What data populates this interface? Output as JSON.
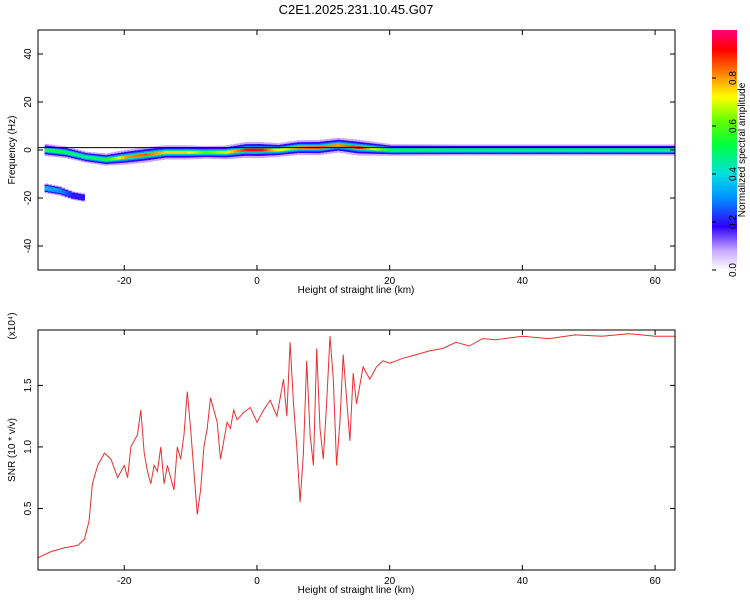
{
  "title": "C2E1.2025.231.10.45.G07",
  "chart_data": [
    {
      "type": "heatmap",
      "xlabel": "Height of straight line (km)",
      "ylabel": "Frequency (Hz)",
      "xlim": [
        -33,
        63
      ],
      "ylim": [
        -50,
        50
      ],
      "xticks": [
        -20,
        0,
        20,
        40,
        60
      ],
      "yticks": [
        -40,
        -20,
        0,
        20,
        40
      ],
      "colorbar": {
        "label": "Normalized spectral amplitude",
        "range": [
          0.0,
          1.0
        ],
        "ticks": [
          0.0,
          0.2,
          0.4,
          0.6,
          0.8
        ],
        "colormap": "rainbow"
      },
      "main_track": {
        "x": [
          -32,
          -29,
          -26,
          -23,
          -20,
          -17,
          -14,
          -11,
          -8,
          -5,
          -2,
          0,
          3,
          6,
          9,
          12,
          15,
          20,
          30,
          40,
          50,
          63
        ],
        "freq": [
          0,
          -1,
          -3,
          -4,
          -3,
          -2,
          -1,
          -1,
          -1,
          -1,
          0,
          0,
          0,
          1,
          1,
          2,
          1,
          0,
          0,
          0,
          0,
          0
        ],
        "amplitude": [
          0.55,
          0.5,
          0.45,
          0.55,
          0.8,
          0.85,
          0.75,
          0.75,
          0.6,
          0.7,
          0.9,
          0.95,
          0.7,
          0.8,
          0.85,
          0.8,
          0.9,
          0.5,
          0.45,
          0.45,
          0.45,
          0.45
        ]
      },
      "secondary_track": {
        "x": [
          -32,
          -30,
          -28,
          -26
        ],
        "freq": [
          -16,
          -17,
          -19,
          -20
        ],
        "amplitude": [
          0.35,
          0.3,
          0.2,
          0.2
        ]
      }
    },
    {
      "type": "line",
      "xlabel": "Height of straight line (km)",
      "ylabel": "SNR (10 * v/v)",
      "scale_label": "(x10⁴)",
      "xlim": [
        -33,
        63
      ],
      "ylim": [
        0,
        1.95
      ],
      "xticks": [
        -20,
        0,
        20,
        40,
        60
      ],
      "yticks": [
        0.5,
        1.0,
        1.5
      ],
      "color": "#e83030",
      "series": [
        {
          "x": [
            -33,
            -31,
            -29,
            -27,
            -26,
            -25.3,
            -24.8,
            -24,
            -23,
            -22,
            -21,
            -20,
            -19.5,
            -19,
            -18.5,
            -18,
            -17.5,
            -17,
            -16.5,
            -16,
            -15.5,
            -15,
            -14.5,
            -14,
            -13.5,
            -13,
            -12.5,
            -12,
            -11.5,
            -11,
            -10.5,
            -10,
            -9.5,
            -9,
            -8.5,
            -8,
            -7.5,
            -7,
            -6.5,
            -6,
            -5.5,
            -5,
            -4.5,
            -4,
            -3.5,
            -3,
            -2,
            -1,
            0,
            1,
            2,
            3,
            4,
            4.5,
            5,
            5.5,
            6,
            6.5,
            7,
            7.5,
            8,
            8.5,
            9,
            9.5,
            10,
            10.5,
            11,
            11.5,
            12,
            12.5,
            13,
            13.5,
            14,
            14.5,
            15,
            15.5,
            16,
            17,
            18,
            19,
            20,
            22,
            24,
            26,
            28,
            30,
            32,
            34,
            36,
            40,
            44,
            48,
            52,
            56,
            60,
            63
          ],
          "y": [
            0.1,
            0.15,
            0.18,
            0.2,
            0.25,
            0.4,
            0.7,
            0.85,
            0.95,
            0.9,
            0.75,
            0.85,
            0.75,
            1.0,
            1.05,
            1.1,
            1.3,
            0.95,
            0.8,
            0.7,
            0.85,
            0.8,
            1.0,
            0.7,
            0.85,
            0.75,
            0.65,
            1.0,
            0.9,
            1.1,
            1.45,
            1.15,
            0.8,
            0.45,
            0.65,
            1.0,
            1.15,
            1.4,
            1.3,
            1.2,
            0.9,
            1.05,
            1.2,
            1.15,
            1.3,
            1.22,
            1.28,
            1.32,
            1.2,
            1.3,
            1.38,
            1.25,
            1.55,
            1.25,
            1.85,
            1.35,
            1.0,
            0.55,
            0.95,
            1.7,
            1.1,
            0.85,
            1.8,
            1.15,
            0.9,
            1.35,
            1.9,
            1.55,
            0.85,
            1.2,
            1.75,
            1.4,
            1.05,
            1.6,
            1.35,
            1.5,
            1.65,
            1.55,
            1.65,
            1.7,
            1.68,
            1.72,
            1.75,
            1.78,
            1.8,
            1.85,
            1.82,
            1.88,
            1.87,
            1.9,
            1.88,
            1.91,
            1.9,
            1.92,
            1.9,
            1.9
          ]
        }
      ]
    }
  ]
}
